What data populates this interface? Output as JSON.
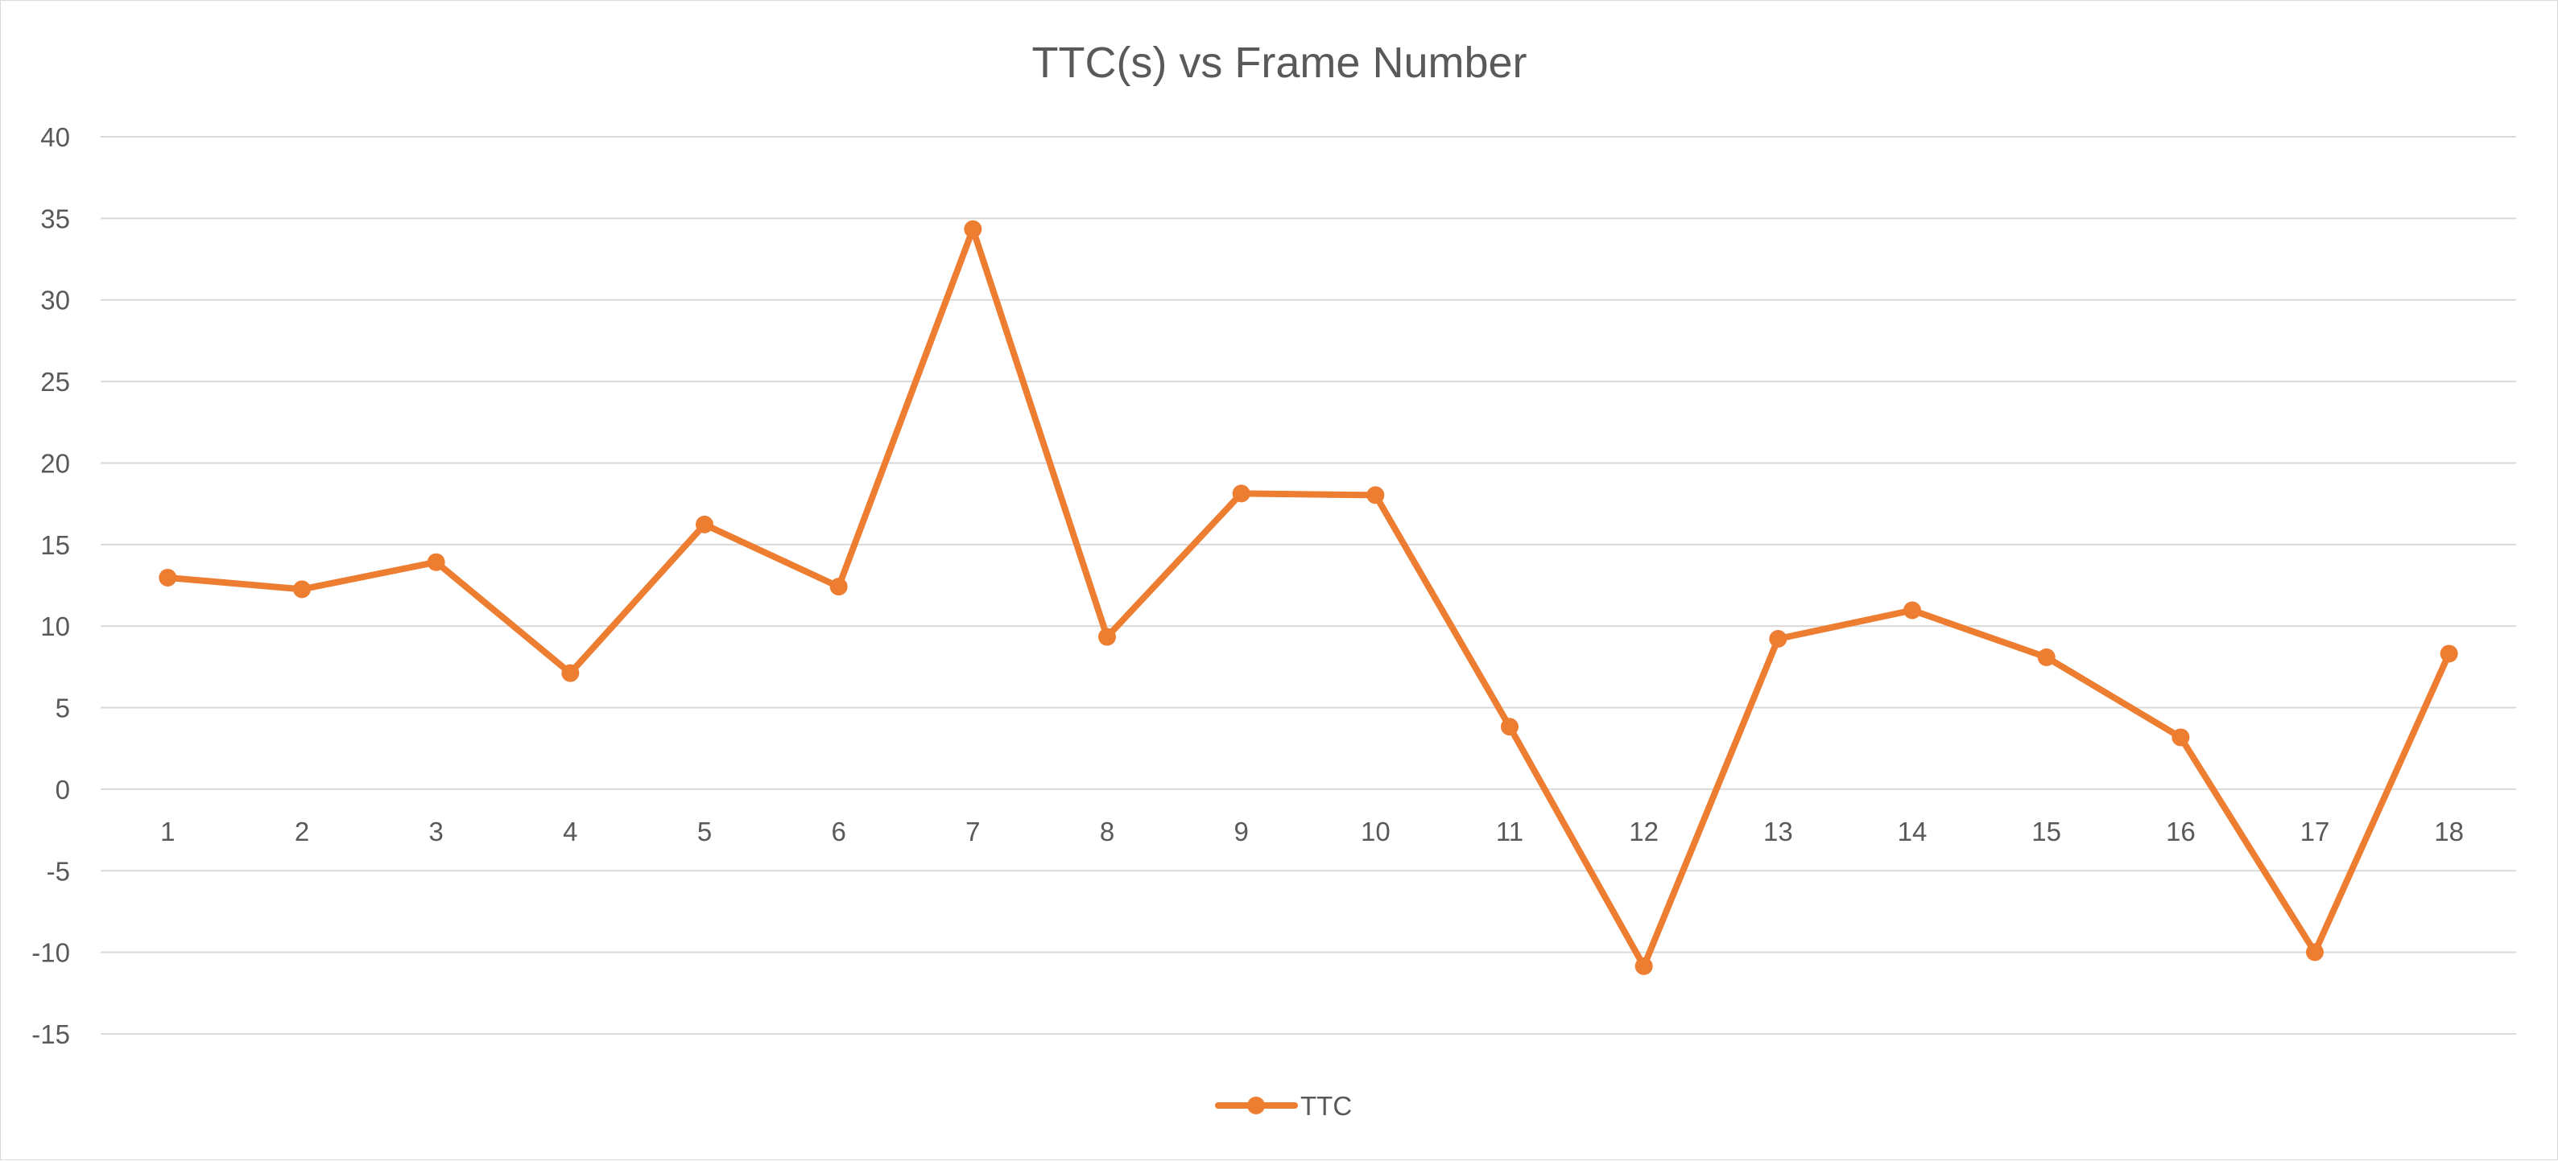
{
  "chart_data": {
    "type": "line",
    "title": "TTC(s) vs Frame Number",
    "xlabel": "",
    "ylabel": "",
    "categories": [
      "1",
      "2",
      "3",
      "4",
      "5",
      "6",
      "7",
      "8",
      "9",
      "10",
      "11",
      "12",
      "13",
      "14",
      "15",
      "16",
      "17",
      "18"
    ],
    "series": [
      {
        "name": "TTC",
        "color": "#ed7d31",
        "marker": "circle",
        "values": [
          12.97,
          12.26,
          13.92,
          7.12,
          16.23,
          12.42,
          34.34,
          9.34,
          18.13,
          18.03,
          3.83,
          -10.85,
          9.22,
          10.97,
          8.09,
          3.18,
          -9.99,
          8.31
        ]
      }
    ],
    "ylim": [
      -15,
      40
    ],
    "y_ticks": [
      "40",
      "35",
      "30",
      "25",
      "20",
      "15",
      "10",
      "5",
      "0",
      "-5",
      "-10",
      "-15"
    ],
    "y_tick_values": [
      40,
      35,
      30,
      25,
      20,
      15,
      10,
      5,
      0,
      -5,
      -10,
      -15
    ],
    "grid": true,
    "legend_position": "bottom"
  }
}
